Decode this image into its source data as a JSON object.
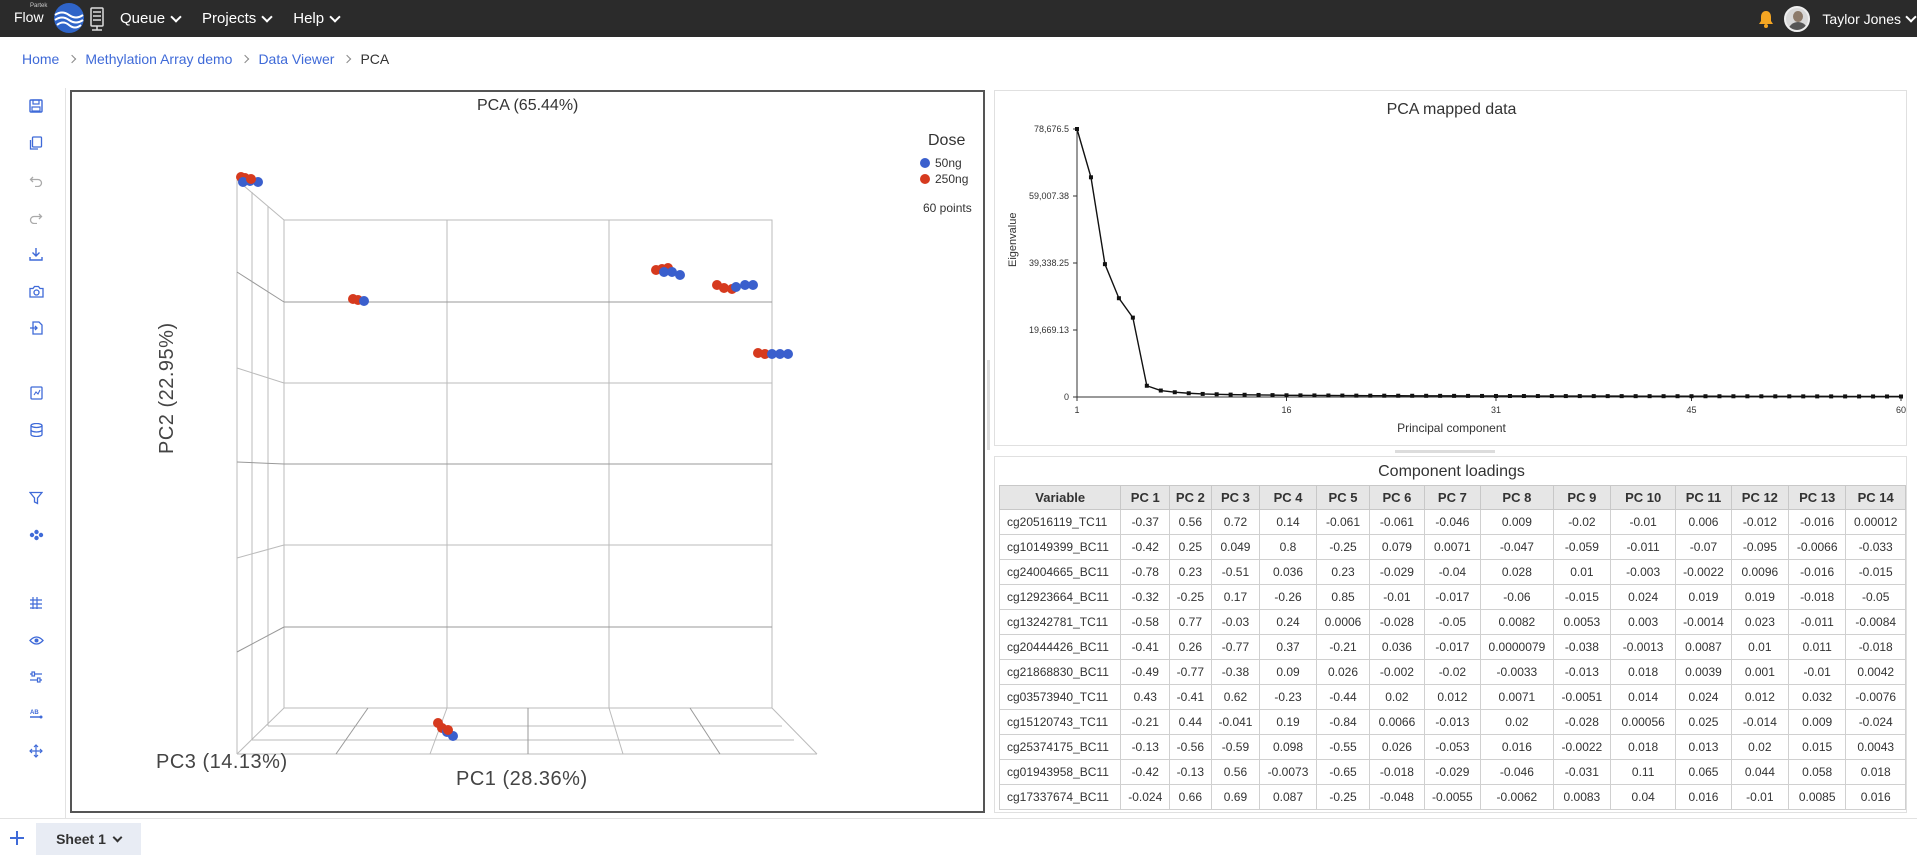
{
  "navbar": {
    "logo_small": "Partek",
    "logo_text": "Flow",
    "menu": [
      {
        "label": "Queue"
      },
      {
        "label": "Projects"
      },
      {
        "label": "Help"
      }
    ],
    "user_name": "Taylor Jones",
    "notification_color": "#f5a623"
  },
  "breadcrumb": {
    "items": [
      "Home",
      "Methylation Array demo",
      "Data Viewer"
    ],
    "current": "PCA"
  },
  "toolbar": {
    "icons": [
      "save-icon",
      "copy-icon",
      "undo-icon",
      "redo-icon",
      "download-icon",
      "camera-icon",
      "export-icon",
      "document-icon",
      "database-icon",
      "filter-icon",
      "brush-icon",
      "grid-icon",
      "eye-icon",
      "sliders-icon",
      "text-size-icon",
      "move-icon"
    ]
  },
  "pca3d": {
    "title": "PCA (65.44%)",
    "legend_title": "Dose",
    "legend": [
      {
        "label": "50ng",
        "color": "#3a5fcd"
      },
      {
        "label": "250ng",
        "color": "#d63a1e"
      }
    ],
    "points_label": "60 points",
    "axis_pc1": "PC1 (28.36%)",
    "axis_pc2": "PC2 (22.95%)",
    "axis_pc3": "PC3 (14.13%)"
  },
  "scree": {
    "title": "PCA mapped data",
    "ylabel": "Eigenvalue",
    "xlabel": "Principal component"
  },
  "chart_data": {
    "type": "line",
    "title": "PCA mapped data",
    "xlabel": "Principal component",
    "ylabel": "Eigenvalue",
    "xlim": [
      1,
      60
    ],
    "ylim": [
      0,
      78676.5
    ],
    "xticks": [
      "1",
      "16",
      "31",
      "45",
      "60"
    ],
    "yticks": [
      "0",
      "19,669.13",
      "39,338.25",
      "59,007.38",
      "78,676.5"
    ],
    "x": [
      1,
      2,
      3,
      4,
      5,
      6,
      7,
      8,
      9,
      10,
      11,
      12,
      13,
      14,
      15,
      16,
      17,
      18,
      19,
      20,
      21,
      22,
      23,
      24,
      25,
      26,
      27,
      28,
      29,
      30,
      31,
      32,
      33,
      34,
      35,
      36,
      37,
      38,
      39,
      40,
      41,
      42,
      43,
      44,
      45,
      46,
      47,
      48,
      49,
      50,
      51,
      52,
      53,
      54,
      55,
      56,
      57,
      58,
      59,
      60
    ],
    "values": [
      78676.5,
      64500,
      39000,
      29000,
      23300,
      3300,
      1900,
      1400,
      1100,
      900,
      800,
      700,
      650,
      600,
      550,
      500,
      480,
      460,
      440,
      420,
      400,
      390,
      380,
      370,
      360,
      350,
      340,
      330,
      320,
      310,
      300,
      295,
      290,
      285,
      280,
      275,
      270,
      265,
      260,
      255,
      250,
      245,
      240,
      235,
      230,
      225,
      220,
      215,
      210,
      205,
      200,
      195,
      190,
      185,
      180,
      175,
      170,
      165,
      160,
      150
    ]
  },
  "loadings": {
    "title": "Component loadings",
    "columns": [
      "Variable",
      "PC 1",
      "PC 2",
      "PC 3",
      "PC 4",
      "PC 5",
      "PC 6",
      "PC 7",
      "PC 8",
      "PC 9",
      "PC 10",
      "PC 11",
      "PC 12",
      "PC 13",
      "PC 14"
    ],
    "rows": [
      [
        "cg20516119_TC11",
        "-0.37",
        "0.56",
        "0.72",
        "0.14",
        "-0.061",
        "-0.061",
        "-0.046",
        "0.009",
        "-0.02",
        "-0.01",
        "0.006",
        "-0.012",
        "-0.016",
        "0.00012"
      ],
      [
        "cg10149399_BC11",
        "-0.42",
        "0.25",
        "0.049",
        "0.8",
        "-0.25",
        "0.079",
        "0.0071",
        "-0.047",
        "-0.059",
        "-0.011",
        "-0.07",
        "-0.095",
        "-0.0066",
        "-0.033"
      ],
      [
        "cg24004665_BC11",
        "-0.78",
        "0.23",
        "-0.51",
        "0.036",
        "0.23",
        "-0.029",
        "-0.04",
        "0.028",
        "0.01",
        "-0.003",
        "-0.0022",
        "0.0096",
        "-0.016",
        "-0.015"
      ],
      [
        "cg12923664_BC11",
        "-0.32",
        "-0.25",
        "0.17",
        "-0.26",
        "0.85",
        "-0.01",
        "-0.017",
        "-0.06",
        "-0.015",
        "0.024",
        "0.019",
        "0.019",
        "-0.018",
        "-0.05"
      ],
      [
        "cg13242781_TC11",
        "-0.58",
        "0.77",
        "-0.03",
        "0.24",
        "0.0006",
        "-0.028",
        "-0.05",
        "0.0082",
        "0.0053",
        "0.003",
        "-0.0014",
        "0.023",
        "-0.011",
        "-0.0084"
      ],
      [
        "cg20444426_BC11",
        "-0.41",
        "0.26",
        "-0.77",
        "0.37",
        "-0.21",
        "0.036",
        "-0.017",
        "0.0000079",
        "-0.038",
        "-0.0013",
        "0.0087",
        "0.01",
        "0.011",
        "-0.018"
      ],
      [
        "cg21868830_BC11",
        "-0.49",
        "-0.77",
        "-0.38",
        "0.09",
        "0.026",
        "-0.002",
        "-0.02",
        "-0.0033",
        "-0.013",
        "0.018",
        "0.0039",
        "0.001",
        "-0.01",
        "0.0042"
      ],
      [
        "cg03573940_TC11",
        "0.43",
        "-0.41",
        "0.62",
        "-0.23",
        "-0.44",
        "0.02",
        "0.012",
        "0.0071",
        "-0.0051",
        "0.014",
        "0.024",
        "0.012",
        "0.032",
        "-0.0076"
      ],
      [
        "cg15120743_TC11",
        "-0.21",
        "0.44",
        "-0.041",
        "0.19",
        "-0.84",
        "0.0066",
        "-0.013",
        "0.02",
        "-0.028",
        "0.00056",
        "0.025",
        "-0.014",
        "0.009",
        "-0.024"
      ],
      [
        "cg25374175_BC11",
        "-0.13",
        "-0.56",
        "-0.59",
        "0.098",
        "-0.55",
        "0.026",
        "-0.053",
        "0.016",
        "-0.0022",
        "0.018",
        "0.013",
        "0.02",
        "0.015",
        "0.0043"
      ],
      [
        "cg01943958_BC11",
        "-0.42",
        "-0.13",
        "0.56",
        "-0.0073",
        "-0.65",
        "-0.018",
        "-0.029",
        "-0.046",
        "-0.031",
        "0.11",
        "0.065",
        "0.044",
        "0.058",
        "0.018"
      ],
      [
        "cg17337674_BC11",
        "-0.024",
        "0.66",
        "0.69",
        "0.087",
        "-0.25",
        "-0.048",
        "-0.0055",
        "-0.0062",
        "0.0083",
        "0.04",
        "0.016",
        "-0.01",
        "0.0085",
        "0.016"
      ]
    ]
  },
  "sheets": {
    "active": "Sheet 1"
  }
}
